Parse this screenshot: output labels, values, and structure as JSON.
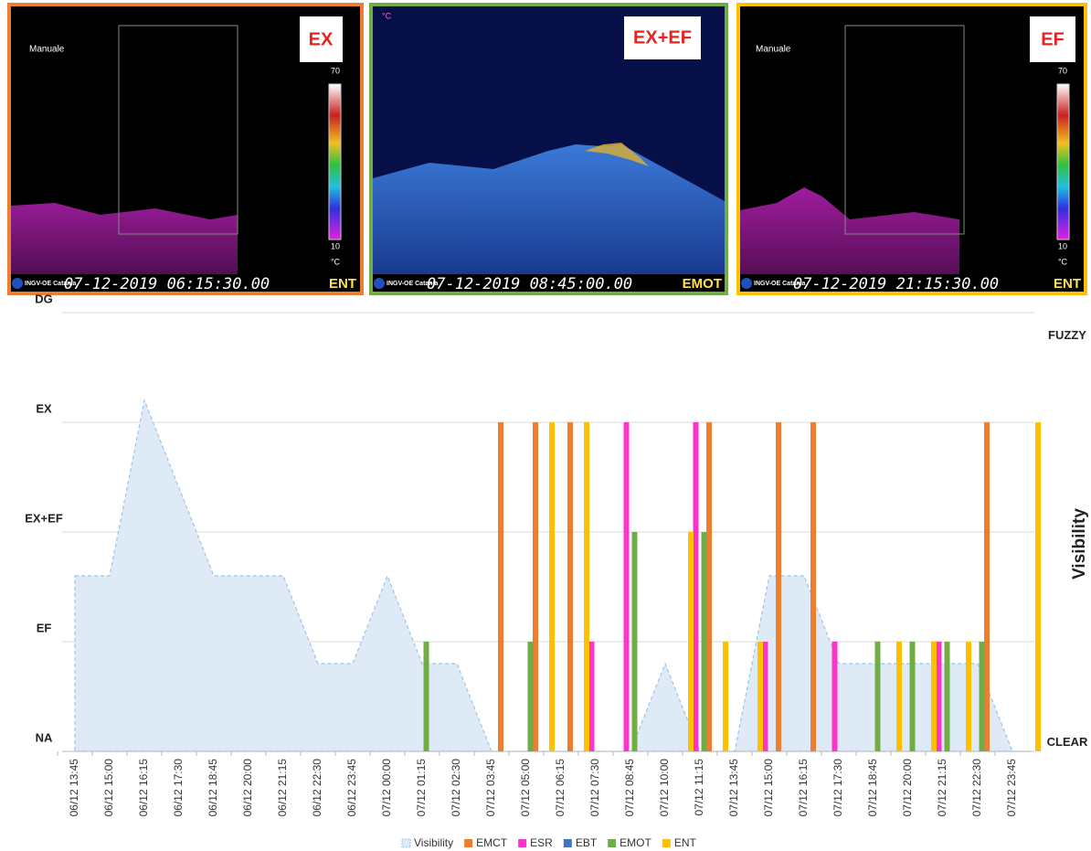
{
  "panels": [
    {
      "header": "Manuale",
      "label": "EX",
      "logo": "INGV-OE Catania",
      "timestamp": "07-12-2019 06:15:30.00",
      "camera": "ENT",
      "scale_max": "70",
      "scale_min": "10",
      "unit": "°C"
    },
    {
      "unit": "°C",
      "label": "EX+EF",
      "logo": "INGV-OE Catania",
      "timestamp": "07-12-2019 08:45:00.00",
      "camera": "EMOT"
    },
    {
      "header": "Manuale",
      "label": "EF",
      "logo": "INGV-OE Catania",
      "timestamp": "07-12-2019 21:15:30.00",
      "camera": "ENT",
      "scale_max": "70",
      "scale_min": "10",
      "unit": "°C"
    }
  ],
  "chart_data": {
    "type": "bar",
    "categories": [
      "06/12 13:45",
      null,
      "06/12 15:00",
      null,
      "06/12 16:15",
      null,
      "06/12 17:30",
      null,
      "06/12 18:45",
      null,
      "06/12 20:00",
      null,
      "06/12 21:15",
      null,
      "06/12 22:30",
      null,
      "06/12 23:45",
      null,
      "07/12 00:00",
      null,
      "07/12 01:15",
      null,
      "07/12 02:30",
      null,
      "07/12 03:45",
      null,
      "07/12 05:00",
      null,
      "07/12 06:15",
      null,
      "07/12 07:30",
      null,
      "07/12 08:45",
      null,
      "07/12 10:00",
      null,
      "07/12 11:15",
      null,
      "07/12 13:45",
      null,
      "07/12 15:00",
      null,
      "07/12 16:15",
      null,
      "07/12 17:30",
      null,
      "07/12 18:45",
      null,
      "07/12 20:00",
      null,
      "07/12 21:15",
      null,
      "07/12 22:30",
      null,
      "07/12 23:45",
      null
    ],
    "ylim": [
      0,
      4
    ],
    "yticks": [
      {
        "value": 0,
        "label": "NA"
      },
      {
        "value": 1,
        "label": "EF"
      },
      {
        "value": 2,
        "label": "EX+EF"
      },
      {
        "value": 3,
        "label": "EX"
      },
      {
        "value": 4,
        "label": "DG"
      }
    ],
    "y2lim": [
      0,
      4
    ],
    "y2ticks": [
      {
        "value": 0,
        "label": "CLEAR"
      },
      {
        "value": 4,
        "label": "FUZZY"
      }
    ],
    "y2label": "Visibility",
    "grid": true,
    "area": {
      "name": "Visibility",
      "color": "#9dc3e6",
      "axis": "y2",
      "values": [
        1.6,
        1.6,
        1.6,
        2.4,
        3.2,
        2.8,
        2.4,
        2.0,
        1.6,
        1.6,
        1.6,
        1.6,
        1.6,
        1.2,
        0.8,
        0.8,
        0.8,
        1.2,
        1.6,
        1.2,
        0.8,
        0.8,
        0.8,
        0.4,
        0,
        0,
        0,
        0,
        0,
        0,
        0,
        0,
        0,
        0.4,
        0.8,
        0.4,
        0,
        0,
        0,
        0.8,
        1.6,
        1.6,
        1.6,
        1.2,
        0.8,
        0.8,
        0.8,
        0.8,
        0.8,
        0.8,
        0.8,
        0.8,
        0.8,
        0.4,
        0,
        0
      ]
    },
    "series": [
      {
        "name": "EMCT",
        "color": "#ed7d31",
        "values": [
          null,
          null,
          null,
          null,
          null,
          null,
          null,
          null,
          null,
          null,
          null,
          null,
          null,
          null,
          null,
          null,
          null,
          null,
          null,
          null,
          null,
          null,
          null,
          null,
          null,
          3,
          null,
          3,
          null,
          3,
          null,
          null,
          null,
          null,
          null,
          null,
          null,
          3,
          null,
          null,
          null,
          3,
          null,
          3,
          null,
          null,
          null,
          null,
          null,
          null,
          null,
          null,
          null,
          3,
          null,
          null
        ]
      },
      {
        "name": "ESR",
        "color": "#ff33cc",
        "values": [
          null,
          null,
          null,
          null,
          null,
          null,
          null,
          null,
          null,
          null,
          null,
          null,
          null,
          null,
          null,
          null,
          null,
          null,
          null,
          null,
          null,
          null,
          null,
          null,
          null,
          null,
          null,
          null,
          null,
          null,
          1,
          null,
          3,
          null,
          null,
          null,
          3,
          null,
          null,
          null,
          1,
          null,
          null,
          null,
          1,
          null,
          null,
          null,
          null,
          null,
          1,
          null,
          null,
          null,
          null,
          null
        ]
      },
      {
        "name": "EBT",
        "color": "#4472c4",
        "values": [
          null,
          null,
          null,
          null,
          null,
          null,
          null,
          null,
          null,
          null,
          null,
          null,
          null,
          null,
          null,
          null,
          null,
          null,
          null,
          null,
          null,
          null,
          null,
          null,
          null,
          null,
          null,
          null,
          null,
          null,
          null,
          null,
          null,
          null,
          null,
          null,
          null,
          null,
          null,
          null,
          null,
          null,
          null,
          null,
          null,
          null,
          null,
          null,
          null,
          null,
          null,
          null,
          null,
          null,
          null,
          null
        ]
      },
      {
        "name": "EMOT",
        "color": "#70ad47",
        "values": [
          null,
          null,
          null,
          null,
          null,
          null,
          null,
          null,
          null,
          null,
          null,
          null,
          null,
          null,
          null,
          null,
          null,
          null,
          null,
          null,
          1,
          null,
          null,
          null,
          null,
          null,
          1,
          null,
          null,
          null,
          null,
          null,
          2,
          null,
          null,
          null,
          2,
          null,
          null,
          null,
          null,
          null,
          null,
          null,
          null,
          null,
          1,
          null,
          1,
          null,
          1,
          null,
          1,
          null,
          null,
          null
        ]
      },
      {
        "name": "ENT",
        "color": "#ffc000",
        "values": [
          null,
          null,
          null,
          null,
          null,
          null,
          null,
          null,
          null,
          null,
          null,
          null,
          null,
          null,
          null,
          null,
          null,
          null,
          null,
          null,
          null,
          null,
          null,
          null,
          null,
          null,
          null,
          3,
          null,
          3,
          null,
          null,
          null,
          null,
          null,
          2,
          null,
          1,
          null,
          1,
          null,
          null,
          null,
          null,
          null,
          null,
          null,
          1,
          null,
          1,
          null,
          1,
          null,
          null,
          null,
          3
        ]
      }
    ]
  }
}
